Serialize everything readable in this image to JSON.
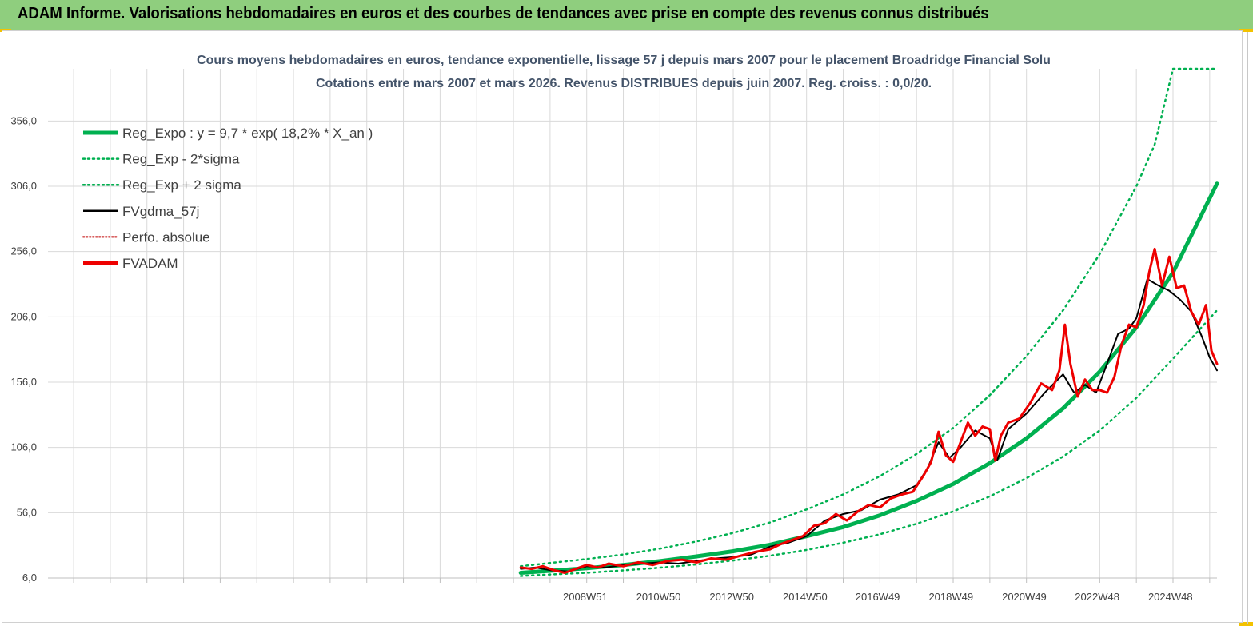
{
  "header": {
    "title": "ADAM Informe. Valorisations hebdomadaires en euros et des courbes de tendances avec prise en compte des revenus connus distribués"
  },
  "colors": {
    "banner": "#8fce7e",
    "accent": "#f2c200",
    "trend": "#00b050",
    "fvadam": "#ee0000",
    "gdma": "#000000",
    "perfo": "#c00000",
    "grid": "#d9d9d9",
    "title_text": "#44546a"
  },
  "chart_data": {
    "type": "line",
    "title": "Cours moyens hebdomadaires en euros, tendance exponentielle, lissage 57 j depuis mars 2007 pour le placement Broadridge Financial Solu",
    "subtitle": "Cotations entre mars 2007 et mars 2026. Revenus DISTRIBUES depuis juin 2007. Reg. croiss. : 0,0/20.",
    "xlabel": "",
    "ylabel": "",
    "ylim": [
      6,
      396
    ],
    "xlim": [
      1994.3,
      2026.2
    ],
    "y_ticks": [
      "6,0",
      "56,0",
      "106,0",
      "156,0",
      "206,0",
      "256,0",
      "306,0",
      "356,0"
    ],
    "x_ticks": [
      "2008W51",
      "2010W50",
      "2012W50",
      "2014W50",
      "2016W49",
      "2018W49",
      "2020W49",
      "2022W48",
      "2024W48"
    ],
    "x_tick_values": [
      2008.96,
      2010.96,
      2012.96,
      2014.96,
      2016.94,
      2018.94,
      2020.94,
      2022.93,
      2024.93
    ],
    "grid": true,
    "legend_position": "top-left",
    "legend": [
      {
        "label": "Reg_Expo : y = 9,7 * exp( 18,2% *  X_an )",
        "style": "solid-thick",
        "color": "#00b050"
      },
      {
        "label": "Reg_Exp - 2*sigma",
        "style": "dotted",
        "color": "#00b050"
      },
      {
        "label": "Reg_Exp + 2 sigma",
        "style": "dotted",
        "color": "#00b050"
      },
      {
        "label": "FVgdma_57j",
        "style": "solid",
        "color": "#000000"
      },
      {
        "label": "Perfo. absolue",
        "style": "dotted",
        "color": "#c00000"
      },
      {
        "label": "FVADAM",
        "style": "solid-thick",
        "color": "#ee0000"
      }
    ],
    "series": [
      {
        "name": "Reg_Expo : y = 9,7 * exp( 18,2% *  X_an )",
        "x": [
          2007.2,
          2008.0,
          2009.0,
          2010.0,
          2011.0,
          2012.0,
          2013.0,
          2014.0,
          2015.0,
          2016.0,
          2017.0,
          2018.0,
          2019.0,
          2020.0,
          2021.0,
          2022.0,
          2023.0,
          2024.0,
          2025.0,
          2026.2
        ],
        "y": [
          10,
          11.5,
          13.5,
          16,
          19,
          22.5,
          26.5,
          31.5,
          38,
          45,
          54,
          65,
          78,
          94,
          113,
          136,
          164,
          198,
          240,
          308
        ]
      },
      {
        "name": "Reg_Exp - 2*sigma",
        "x": [
          2007.2,
          2008.0,
          2009.0,
          2010.0,
          2011.0,
          2012.0,
          2013.0,
          2014.0,
          2015.0,
          2016.0,
          2017.0,
          2018.0,
          2019.0,
          2020.0,
          2021.0,
          2022.0,
          2023.0,
          2024.0,
          2025.0,
          2026.2
        ],
        "y": [
          7.5,
          8.7,
          10,
          11.8,
          13.9,
          16.4,
          19.4,
          23,
          27.5,
          33,
          39.5,
          47.5,
          57,
          68.5,
          82.5,
          99,
          119,
          144,
          174,
          211
        ]
      },
      {
        "name": "Reg_Exp + 2 sigma",
        "x": [
          2007.2,
          2008.0,
          2009.0,
          2010.0,
          2011.0,
          2012.0,
          2013.0,
          2014.0,
          2015.0,
          2016.0,
          2017.0,
          2018.0,
          2019.0,
          2020.0,
          2021.0,
          2022.0,
          2023.0,
          2024.0,
          2024.5,
          2025.0,
          2026.2
        ],
        "y": [
          15,
          17.5,
          20.5,
          24,
          28.5,
          34,
          40.5,
          48.5,
          58.5,
          70,
          84,
          101,
          121,
          146,
          176,
          211,
          254,
          306,
          338,
          396,
          396
        ]
      },
      {
        "name": "FVgdma_57j",
        "x": [
          2007.2,
          2007.6,
          2008.0,
          2008.5,
          2009.0,
          2009.5,
          2010.0,
          2010.5,
          2011.0,
          2011.5,
          2012.0,
          2012.5,
          2013.0,
          2013.5,
          2014.0,
          2014.5,
          2015.0,
          2015.5,
          2016.0,
          2016.5,
          2017.0,
          2017.5,
          2018.0,
          2018.3,
          2018.6,
          2018.9,
          2019.2,
          2019.6,
          2020.0,
          2020.2,
          2020.5,
          2021.0,
          2021.5,
          2022.0,
          2022.3,
          2022.6,
          2022.9,
          2023.2,
          2023.5,
          2023.8,
          2024.0,
          2024.3,
          2024.6,
          2024.9,
          2025.2,
          2025.5,
          2025.8,
          2026.0,
          2026.2
        ],
        "y": [
          13,
          14,
          12,
          11,
          15,
          14,
          16,
          17,
          18,
          17,
          19,
          21,
          22,
          24,
          30,
          33,
          38,
          50,
          55,
          58,
          66,
          70,
          77,
          90,
          110,
          98,
          106,
          119,
          113,
          96,
          120,
          132,
          148,
          162,
          148,
          154,
          148,
          170,
          193,
          197,
          205,
          235,
          230,
          226,
          219,
          210,
          190,
          175,
          165
        ]
      },
      {
        "name": "FVADAM",
        "x": [
          2007.2,
          2007.5,
          2007.8,
          2008.1,
          2008.4,
          2008.7,
          2009.0,
          2009.3,
          2009.6,
          2010.0,
          2010.4,
          2010.8,
          2011.2,
          2011.6,
          2012.0,
          2012.4,
          2012.8,
          2013.2,
          2013.6,
          2014.0,
          2014.3,
          2014.6,
          2014.9,
          2015.2,
          2015.5,
          2015.8,
          2016.1,
          2016.4,
          2016.7,
          2017.0,
          2017.3,
          2017.6,
          2017.9,
          2018.2,
          2018.4,
          2018.6,
          2018.8,
          2019.0,
          2019.2,
          2019.4,
          2019.6,
          2019.8,
          2020.0,
          2020.15,
          2020.3,
          2020.5,
          2020.8,
          2021.1,
          2021.4,
          2021.7,
          2021.9,
          2022.05,
          2022.2,
          2022.4,
          2022.6,
          2022.8,
          2023.0,
          2023.2,
          2023.4,
          2023.6,
          2023.8,
          2024.0,
          2024.2,
          2024.35,
          2024.5,
          2024.7,
          2024.9,
          2025.1,
          2025.3,
          2025.5,
          2025.7,
          2025.9,
          2026.05,
          2026.2
        ],
        "y": [
          14,
          13,
          15,
          12,
          10,
          13,
          16,
          14,
          17,
          15,
          18,
          16,
          19,
          20,
          18,
          21,
          20,
          23,
          26,
          28,
          32,
          35,
          38,
          46,
          48,
          55,
          50,
          57,
          62,
          60,
          67,
          70,
          72,
          85,
          95,
          118,
          100,
          95,
          110,
          125,
          115,
          122,
          120,
          96,
          115,
          125,
          128,
          140,
          155,
          150,
          165,
          200,
          170,
          145,
          158,
          150,
          150,
          148,
          160,
          185,
          200,
          198,
          215,
          240,
          258,
          230,
          252,
          228,
          230,
          210,
          200,
          215,
          180,
          170
        ]
      }
    ]
  }
}
